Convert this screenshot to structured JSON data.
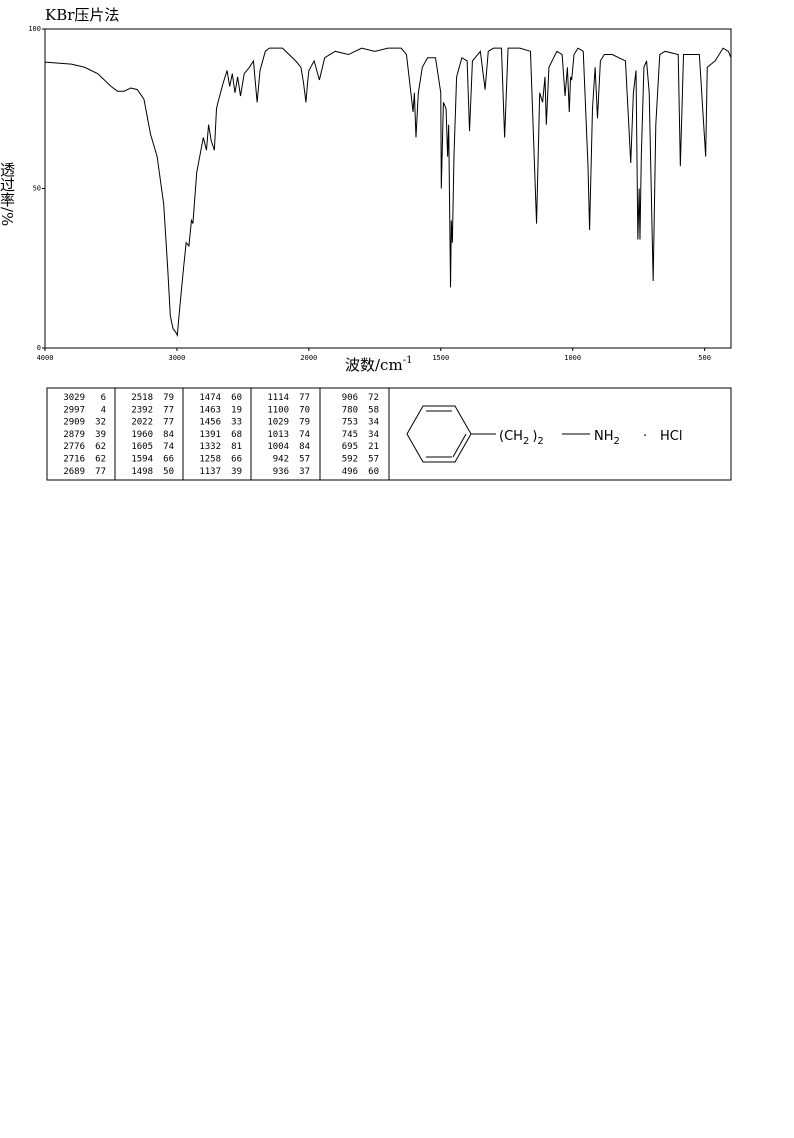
{
  "chart_data": {
    "type": "line",
    "title": "KBr压片法",
    "y_label": "透过率/%",
    "x_label": "波数/cm",
    "x_label_sup": "-1",
    "xlim": [
      4000,
      400
    ],
    "xscale_break": 2000,
    "xticks": [
      4000,
      3000,
      2000,
      1500,
      1000,
      500
    ],
    "ylim": [
      0,
      100
    ],
    "yticks": [
      0,
      50,
      100
    ],
    "color": "#000000",
    "x": [
      4000,
      3800,
      3700,
      3600,
      3500,
      3450,
      3400,
      3350,
      3300,
      3250,
      3200,
      3150,
      3100,
      3070,
      3050,
      3029,
      3010,
      2997,
      2980,
      2950,
      2930,
      2909,
      2890,
      2879,
      2850,
      2800,
      2776,
      2760,
      2740,
      2716,
      2700,
      2689,
      2650,
      2620,
      2600,
      2580,
      2560,
      2540,
      2518,
      2490,
      2450,
      2420,
      2392,
      2370,
      2330,
      2300,
      2200,
      2150,
      2100,
      2060,
      2040,
      2022,
      2010,
      2000,
      1980,
      1960,
      1940,
      1900,
      1850,
      1800,
      1750,
      1700,
      1650,
      1630,
      1605,
      1600,
      1594,
      1585,
      1570,
      1550,
      1520,
      1500,
      1498,
      1490,
      1480,
      1474,
      1470,
      1463,
      1460,
      1456,
      1450,
      1440,
      1420,
      1400,
      1391,
      1380,
      1350,
      1332,
      1320,
      1300,
      1270,
      1258,
      1245,
      1200,
      1160,
      1137,
      1125,
      1114,
      1105,
      1100,
      1090,
      1060,
      1040,
      1029,
      1020,
      1013,
      1008,
      1004,
      995,
      980,
      960,
      942,
      936,
      925,
      915,
      906,
      895,
      880,
      850,
      800,
      780,
      770,
      760,
      753,
      748,
      745,
      740,
      730,
      720,
      710,
      695,
      685,
      670,
      650,
      600,
      592,
      580,
      550,
      520,
      496,
      490,
      460,
      430,
      410,
      400
    ],
    "values": [
      89.6,
      89,
      88,
      86,
      82,
      80.5,
      80.5,
      81.5,
      81,
      78,
      67,
      60,
      45,
      25,
      10,
      6,
      5,
      4,
      12,
      25,
      33,
      32,
      40,
      39,
      55,
      66,
      62,
      70,
      65,
      62,
      75,
      77,
      83,
      87,
      82,
      86,
      80,
      85,
      79,
      86,
      88,
      90,
      77,
      87,
      93,
      94,
      94,
      92,
      90,
      88,
      83,
      77,
      83,
      87,
      90,
      84,
      91,
      93,
      92,
      94,
      93,
      94,
      94,
      92,
      74,
      80,
      66,
      80,
      88,
      91,
      91,
      80,
      50,
      77,
      75,
      60,
      70,
      19,
      40,
      33,
      60,
      85,
      91,
      90,
      68,
      90,
      93,
      81,
      93,
      94,
      94,
      66,
      94,
      94,
      93,
      39,
      80,
      77,
      85,
      70,
      88,
      93,
      92,
      79,
      88,
      74,
      85,
      84,
      92,
      94,
      93,
      57,
      37,
      75,
      88,
      72,
      90,
      92,
      92,
      90,
      58,
      80,
      87,
      34,
      50,
      34,
      60,
      88,
      90,
      80,
      21,
      70,
      92,
      93,
      92,
      57,
      92,
      92,
      92,
      60,
      88,
      90,
      94,
      93,
      91
    ]
  },
  "peak_table": [
    [
      [
        3029,
        6
      ],
      [
        2997,
        4
      ],
      [
        2909,
        32
      ],
      [
        2879,
        39
      ],
      [
        2776,
        62
      ],
      [
        2716,
        62
      ],
      [
        2689,
        77
      ]
    ],
    [
      [
        2518,
        79
      ],
      [
        2392,
        77
      ],
      [
        2022,
        77
      ],
      [
        1960,
        84
      ],
      [
        1605,
        74
      ],
      [
        1594,
        66
      ],
      [
        1498,
        50
      ]
    ],
    [
      [
        1474,
        60
      ],
      [
        1463,
        19
      ],
      [
        1456,
        33
      ],
      [
        1391,
        68
      ],
      [
        1332,
        81
      ],
      [
        1258,
        66
      ],
      [
        1137,
        39
      ]
    ],
    [
      [
        1114,
        77
      ],
      [
        1100,
        70
      ],
      [
        1029,
        79
      ],
      [
        1013,
        74
      ],
      [
        1004,
        84
      ],
      [
        942,
        57
      ],
      [
        936,
        37
      ]
    ],
    [
      [
        906,
        72
      ],
      [
        780,
        58
      ],
      [
        753,
        34
      ],
      [
        745,
        34
      ],
      [
        695,
        21
      ],
      [
        592,
        57
      ],
      [
        496,
        60
      ]
    ]
  ],
  "structure": [
    "(CH",
    "2",
    ")",
    "2",
    "NH",
    "2",
    "·",
    "HCl"
  ]
}
